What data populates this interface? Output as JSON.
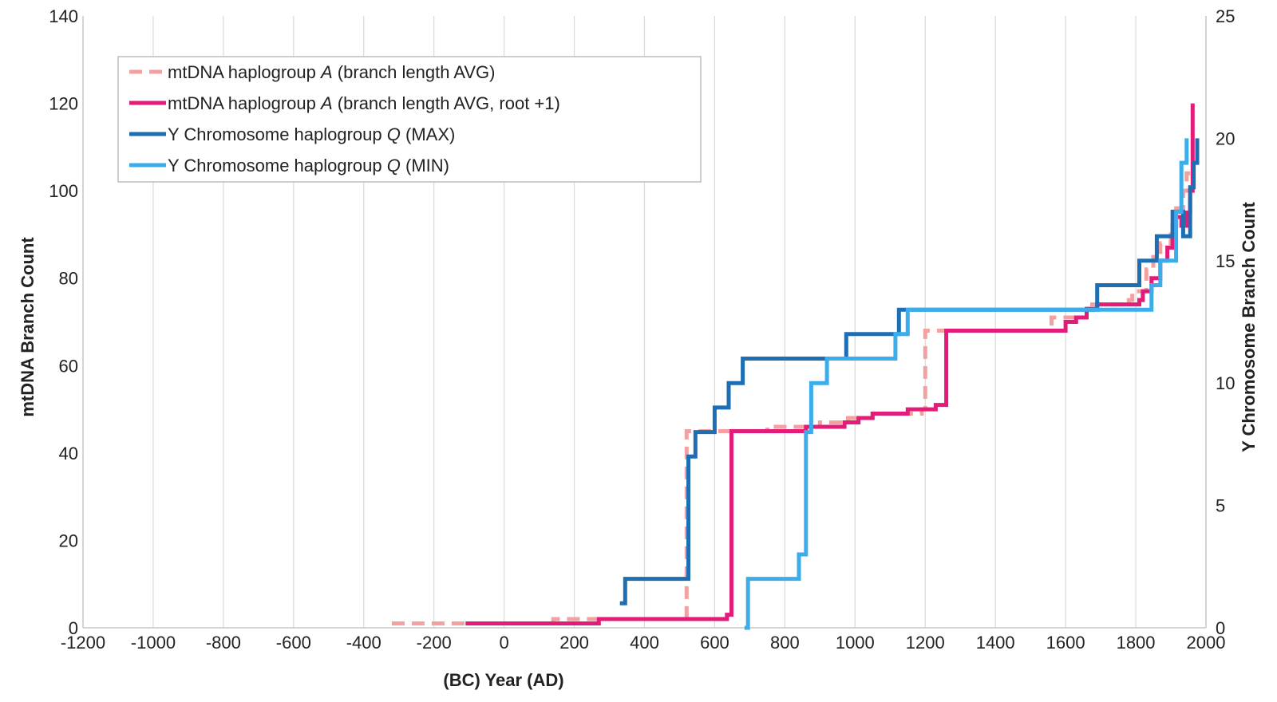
{
  "chart_data": {
    "type": "line",
    "title": "",
    "xlabel": "(BC) Year (AD)",
    "ylabel": "mtDNA Branch Count",
    "y2label": "Y Chromosome Branch Count",
    "xlim": [
      -1200,
      2000
    ],
    "ylim": [
      0,
      140
    ],
    "y2lim": [
      0,
      25
    ],
    "x_ticks": [
      -1200,
      -1000,
      -800,
      -600,
      -400,
      -200,
      0,
      200,
      400,
      600,
      800,
      1000,
      1200,
      1400,
      1600,
      1800,
      2000
    ],
    "y_ticks": [
      0,
      20,
      40,
      60,
      80,
      100,
      120,
      140
    ],
    "y2_ticks": [
      0,
      5,
      10,
      15,
      20,
      25
    ],
    "grid": "vertical",
    "legend_position": "top-left",
    "series": [
      {
        "name": "mtDNA haplogroup A (branch length AVG)",
        "name_pre": "mtDNA haplogroup ",
        "name_ital": "A",
        "name_post": " (branch length AVG)",
        "axis": "left",
        "color": "#f4a0a0",
        "dash": true,
        "steps": [
          [
            -320,
            1
          ],
          [
            140,
            1
          ],
          [
            140,
            2
          ],
          [
            300,
            2
          ],
          [
            300,
            2
          ],
          [
            520,
            2
          ],
          [
            520,
            45
          ],
          [
            650,
            45
          ],
          [
            650,
            45
          ],
          [
            750,
            45
          ],
          [
            750,
            46
          ],
          [
            900,
            46
          ],
          [
            900,
            47
          ],
          [
            980,
            47
          ],
          [
            980,
            48
          ],
          [
            1050,
            48
          ],
          [
            1050,
            49
          ],
          [
            1120,
            49
          ],
          [
            1190,
            49
          ],
          [
            1190,
            50
          ],
          [
            1200,
            50
          ],
          [
            1200,
            68
          ],
          [
            1250,
            68
          ],
          [
            1250,
            68
          ],
          [
            1560,
            68
          ],
          [
            1560,
            71
          ],
          [
            1600,
            71
          ],
          [
            1600,
            71
          ],
          [
            1660,
            71
          ],
          [
            1660,
            74
          ],
          [
            1700,
            74
          ],
          [
            1700,
            74
          ],
          [
            1780,
            74
          ],
          [
            1780,
            75
          ],
          [
            1790,
            75
          ],
          [
            1790,
            77
          ],
          [
            1830,
            77
          ],
          [
            1830,
            82
          ],
          [
            1850,
            82
          ],
          [
            1850,
            86
          ],
          [
            1870,
            86
          ],
          [
            1870,
            88
          ],
          [
            1900,
            88
          ],
          [
            1900,
            92
          ],
          [
            1915,
            92
          ],
          [
            1915,
            96
          ],
          [
            1935,
            96
          ],
          [
            1935,
            100
          ],
          [
            1945,
            100
          ],
          [
            1945,
            104
          ],
          [
            1955,
            104
          ]
        ]
      },
      {
        "name": "mtDNA haplogroup A (branch length AVG, root +1)",
        "name_pre": "mtDNA haplogroup ",
        "name_ital": "A",
        "name_post": " (branch length AVG, root +1)",
        "axis": "left",
        "color": "#e31c79",
        "dash": false,
        "steps": [
          [
            -110,
            1
          ],
          [
            270,
            1
          ],
          [
            270,
            2
          ],
          [
            545,
            2
          ],
          [
            545,
            2
          ],
          [
            635,
            2
          ],
          [
            635,
            3
          ],
          [
            648,
            3
          ],
          [
            648,
            45
          ],
          [
            860,
            45
          ],
          [
            860,
            46
          ],
          [
            970,
            46
          ],
          [
            970,
            47
          ],
          [
            1010,
            47
          ],
          [
            1010,
            48
          ],
          [
            1050,
            48
          ],
          [
            1050,
            49
          ],
          [
            1150,
            49
          ],
          [
            1150,
            50
          ],
          [
            1230,
            50
          ],
          [
            1230,
            51
          ],
          [
            1260,
            51
          ],
          [
            1260,
            68
          ],
          [
            1600,
            68
          ],
          [
            1600,
            70
          ],
          [
            1630,
            70
          ],
          [
            1630,
            71
          ],
          [
            1660,
            71
          ],
          [
            1660,
            73
          ],
          [
            1690,
            73
          ],
          [
            1690,
            74
          ],
          [
            1810,
            74
          ],
          [
            1810,
            75
          ],
          [
            1820,
            75
          ],
          [
            1820,
            77
          ],
          [
            1845,
            77
          ],
          [
            1845,
            80
          ],
          [
            1870,
            80
          ],
          [
            1870,
            84
          ],
          [
            1890,
            84
          ],
          [
            1890,
            87
          ],
          [
            1905,
            87
          ],
          [
            1905,
            92
          ],
          [
            1915,
            92
          ],
          [
            1915,
            94
          ],
          [
            1930,
            94
          ],
          [
            1930,
            92
          ],
          [
            1945,
            92
          ],
          [
            1945,
            95
          ],
          [
            1955,
            95
          ],
          [
            1955,
            100
          ],
          [
            1962,
            100
          ],
          [
            1962,
            120
          ]
        ]
      },
      {
        "name": "Y Chromosome haplogroup Q (MAX)",
        "name_pre": "Y Chromosome haplogroup ",
        "name_ital": "Q",
        "name_post": " (MAX)",
        "axis": "right",
        "color": "#1f6eb3",
        "dash": false,
        "steps": [
          [
            330,
            1
          ],
          [
            345,
            1
          ],
          [
            345,
            2
          ],
          [
            525,
            2
          ],
          [
            525,
            7
          ],
          [
            545,
            7
          ],
          [
            545,
            8
          ],
          [
            600,
            8
          ],
          [
            600,
            9
          ],
          [
            640,
            9
          ],
          [
            640,
            10
          ],
          [
            680,
            10
          ],
          [
            680,
            11
          ],
          [
            975,
            11
          ],
          [
            975,
            12
          ],
          [
            1125,
            12
          ],
          [
            1125,
            13
          ],
          [
            1690,
            13
          ],
          [
            1690,
            14
          ],
          [
            1810,
            14
          ],
          [
            1810,
            15
          ],
          [
            1860,
            15
          ],
          [
            1860,
            16
          ],
          [
            1905,
            16
          ],
          [
            1905,
            17
          ],
          [
            1935,
            17
          ],
          [
            1935,
            16
          ],
          [
            1955,
            16
          ],
          [
            1955,
            18
          ],
          [
            1965,
            18
          ],
          [
            1965,
            19
          ],
          [
            1975,
            19
          ],
          [
            1975,
            20
          ]
        ]
      },
      {
        "name": "Y Chromosome haplogroup Q (MIN)",
        "name_pre": "Y Chromosome haplogroup ",
        "name_ital": "Q",
        "name_post": " (MIN)",
        "axis": "right",
        "color": "#3badea",
        "dash": false,
        "steps": [
          [
            685,
            0
          ],
          [
            695,
            0
          ],
          [
            695,
            2
          ],
          [
            840,
            2
          ],
          [
            840,
            3
          ],
          [
            860,
            3
          ],
          [
            860,
            8
          ],
          [
            875,
            8
          ],
          [
            875,
            10
          ],
          [
            920,
            10
          ],
          [
            920,
            11
          ],
          [
            1115,
            11
          ],
          [
            1115,
            12
          ],
          [
            1150,
            12
          ],
          [
            1150,
            13
          ],
          [
            1845,
            13
          ],
          [
            1845,
            14
          ],
          [
            1870,
            14
          ],
          [
            1870,
            15
          ],
          [
            1915,
            15
          ],
          [
            1915,
            17
          ],
          [
            1930,
            17
          ],
          [
            1930,
            19
          ],
          [
            1945,
            19
          ],
          [
            1945,
            20
          ]
        ]
      }
    ]
  }
}
